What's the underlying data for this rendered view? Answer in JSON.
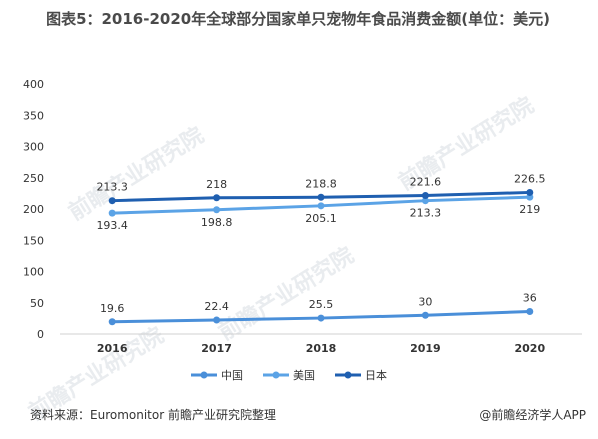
{
  "title": "图表5：2016-2020年全球部分国家单只宠物年食品消费金额(单位：美元)",
  "source": "资料来源：Euromonitor 前瞻产业研究院整理",
  "brand": "@前瞻经济学人APP",
  "watermark": "前瞻产业研究院",
  "chart_data": {
    "type": "line",
    "title": "图表5：2016-2020年全球部分国家单只宠物年食品消费金额(单位：美元)",
    "xlabel": "",
    "ylabel": "",
    "x": [
      "2016",
      "2017",
      "2018",
      "2019",
      "2020"
    ],
    "ylim": [
      0,
      400
    ],
    "yticks": [
      "0",
      "50",
      "100",
      "150",
      "200",
      "250",
      "300",
      "350",
      "400"
    ],
    "grid": false,
    "legend": "bottom",
    "series": [
      {
        "name": "中国",
        "values": [
          19.6,
          22.4,
          25.5,
          30,
          36
        ],
        "labels": [
          "19.6",
          "22.4",
          "25.5",
          "30",
          "36"
        ],
        "color": "#4a8fd9",
        "label_pos": "above"
      },
      {
        "name": "美国",
        "values": [
          193.4,
          198.8,
          205.1,
          213.3,
          219
        ],
        "labels": [
          "193.4",
          "198.8",
          "205.1",
          "213.3",
          "219"
        ],
        "color": "#5ba3e6",
        "label_pos": "below"
      },
      {
        "name": "日本",
        "values": [
          213.3,
          218,
          218.8,
          221.6,
          226.5
        ],
        "labels": [
          "213.3",
          "218",
          "218.8",
          "221.6",
          "226.5"
        ],
        "color": "#1f5fb0",
        "label_pos": "above"
      }
    ]
  }
}
